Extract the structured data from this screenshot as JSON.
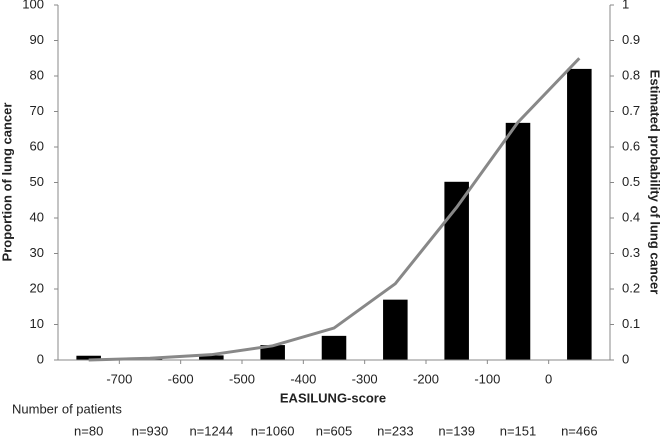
{
  "chart_data": {
    "type": "bar",
    "ylabel": "Proportion of lung cancer",
    "y2label": "Estimated probability of lung cancer",
    "xlabel": "EASILUNG-score",
    "x": [
      -750,
      -650,
      -550,
      -450,
      -350,
      -250,
      -150,
      -50,
      50
    ],
    "xlim": [
      -800,
      100
    ],
    "xticks": [
      -700,
      -600,
      -500,
      -400,
      -300,
      -200,
      -100,
      0
    ],
    "ylim": [
      0,
      100
    ],
    "yticks": [
      0,
      10,
      20,
      30,
      40,
      50,
      60,
      70,
      80,
      90,
      100
    ],
    "y2lim": [
      0,
      1
    ],
    "y2ticks": [
      0,
      0.1,
      0.2,
      0.3,
      0.4,
      0.5,
      0.6,
      0.7,
      0.8,
      0.9,
      1
    ],
    "series": [
      {
        "type": "bar",
        "color": "#000000",
        "values": [
          1.2,
          0.5,
          1.3,
          4.2,
          6.8,
          17,
          50.2,
          66.8,
          82
        ]
      },
      {
        "type": "line",
        "axis": "y2",
        "color": "#888888",
        "values": [
          0.0,
          0.005,
          0.015,
          0.04,
          0.09,
          0.215,
          0.43,
          0.67,
          0.85
        ]
      }
    ],
    "patients_title": "Number of patients",
    "patients": [
      "n=80",
      "n=930",
      "n=1244",
      "n=1060",
      "n=605",
      "n=233",
      "n=139",
      "n=151",
      "n=466"
    ]
  }
}
